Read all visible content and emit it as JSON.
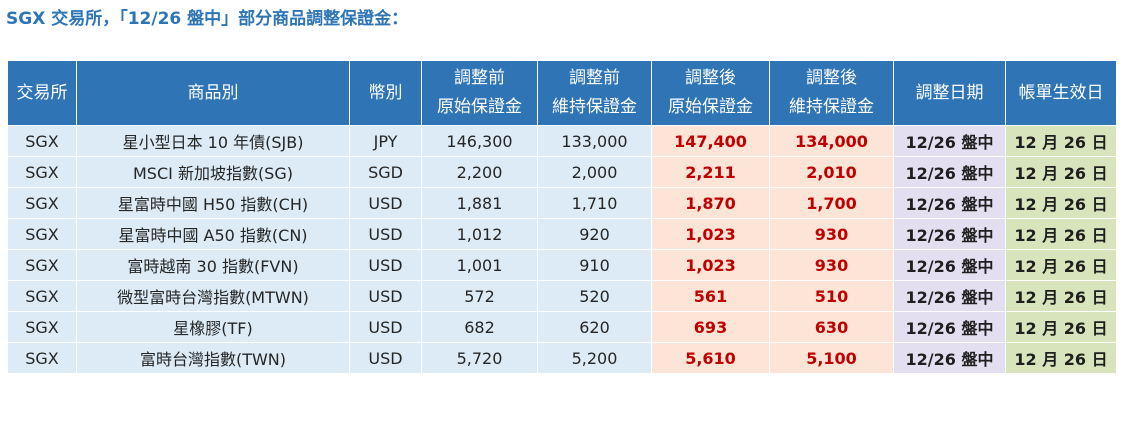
{
  "page": {
    "title": "SGX 交易所，「12/26 盤中」部分商品調整保證金："
  },
  "table": {
    "headers": [
      [
        "交易所"
      ],
      [
        "商品別"
      ],
      [
        "幣別"
      ],
      [
        "調整前",
        "原始保證金"
      ],
      [
        "調整前",
        "維持保證金"
      ],
      [
        "調整後",
        "原始保證金"
      ],
      [
        "調整後",
        "維持保證金"
      ],
      [
        "調整日期"
      ],
      [
        "帳單生效日"
      ]
    ],
    "rows": [
      [
        "SGX",
        "星小型日本 10 年債(SJB)",
        "JPY",
        "146,300",
        "133,000",
        "147,400",
        "134,000",
        "12/26 盤中",
        "12 月 26 日"
      ],
      [
        "SGX",
        "MSCI 新加坡指數(SG)",
        "SGD",
        "2,200",
        "2,000",
        "2,211",
        "2,010",
        "12/26 盤中",
        "12 月 26 日"
      ],
      [
        "SGX",
        "星富時中國 H50 指數(CH)",
        "USD",
        "1,881",
        "1,710",
        "1,870",
        "1,700",
        "12/26 盤中",
        "12 月 26 日"
      ],
      [
        "SGX",
        "星富時中國 A50 指數(CN)",
        "USD",
        "1,012",
        "920",
        "1,023",
        "930",
        "12/26 盤中",
        "12 月 26 日"
      ],
      [
        "SGX",
        "富時越南 30 指數(FVN)",
        "USD",
        "1,001",
        "910",
        "1,023",
        "930",
        "12/26 盤中",
        "12 月 26 日"
      ],
      [
        "SGX",
        "微型富時台灣指數(MTWN)",
        "USD",
        "572",
        "520",
        "561",
        "510",
        "12/26 盤中",
        "12 月 26 日"
      ],
      [
        "SGX",
        "星橡膠(TF)",
        "USD",
        "682",
        "620",
        "693",
        "630",
        "12/26 盤中",
        "12 月 26 日"
      ],
      [
        "SGX",
        "富時台灣指數(TWN)",
        "USD",
        "5,720",
        "5,200",
        "5,610",
        "5,100",
        "12/26 盤中",
        "12 月 26 日"
      ]
    ]
  },
  "colors": {
    "header_bg": "#2f75b5",
    "title": "#2e75b6",
    "plain_cell_bg": "#dcebf5",
    "adjusted_cell_bg": "#fce4d6",
    "adjusted_text": "#c00000",
    "date_cell_bg": "#e4dff0",
    "effective_cell_bg": "#d8e4bc"
  }
}
